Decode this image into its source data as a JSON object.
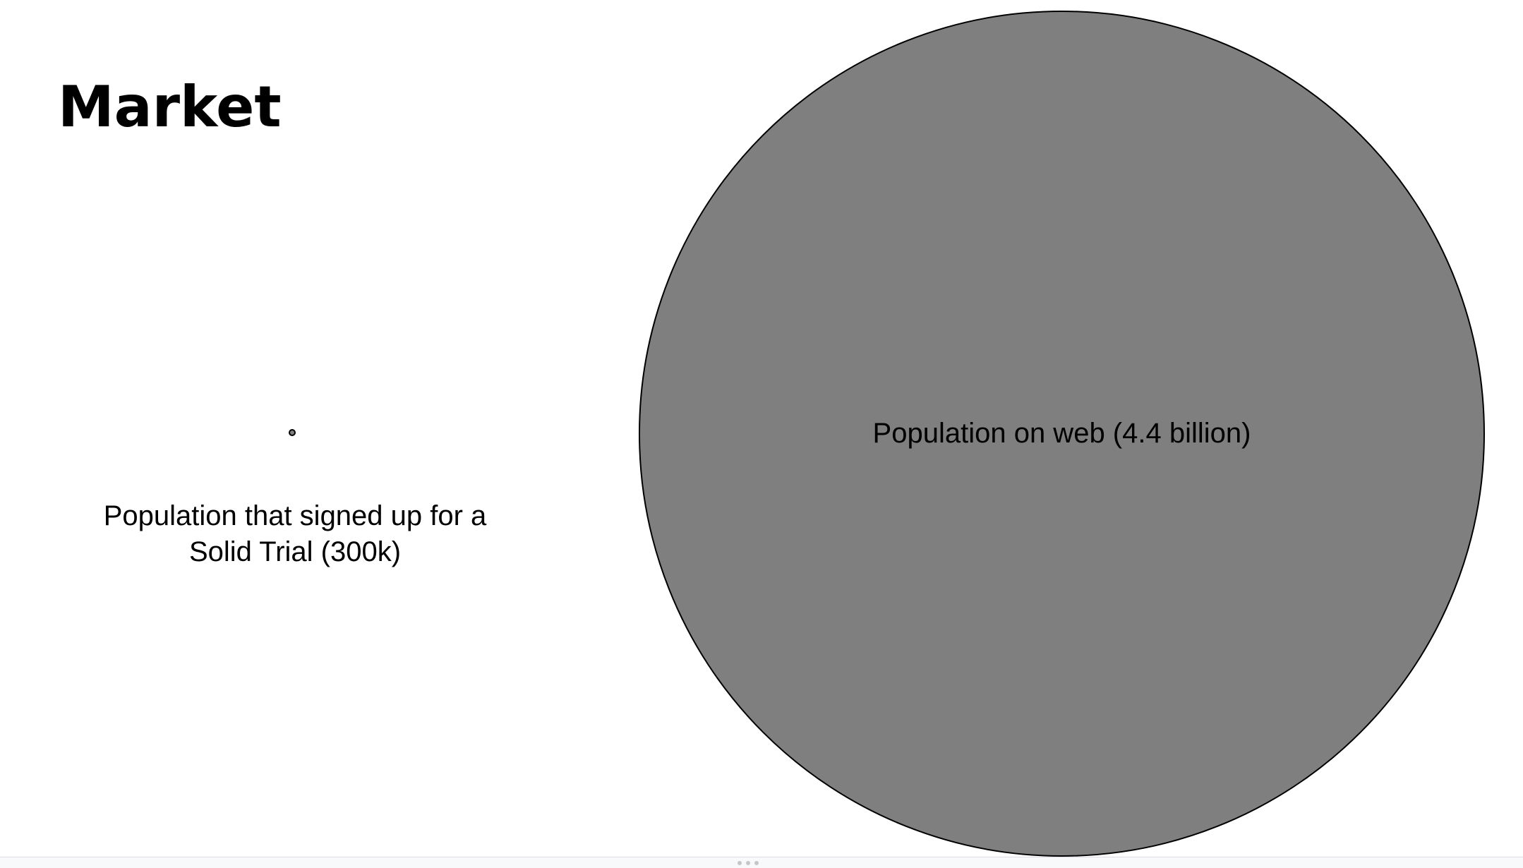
{
  "slide": {
    "title": "Market",
    "small_circle": {
      "label": "Population that signed up for a Solid Trial (300k)"
    },
    "big_circle": {
      "label": "Population on web (4.4 billion)"
    },
    "colors": {
      "circle_fill": "#7f7f7f",
      "circle_stroke": "#000000",
      "text": "#000000",
      "background": "#ffffff"
    }
  },
  "icons": {
    "resize_handle": "drag-handle-icon"
  }
}
